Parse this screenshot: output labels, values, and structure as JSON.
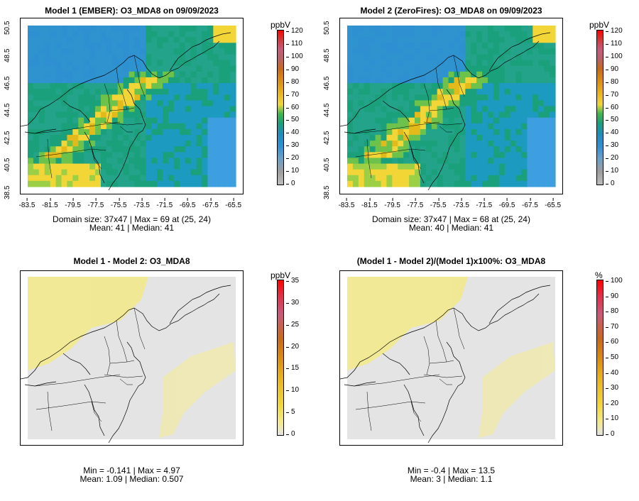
{
  "panels": [
    {
      "title": "Model 1 (EMBER): O3_MDA8 on 09/09/2023",
      "stat1": "Domain size: 37x47 | Max = 69 at (25, 24)",
      "stat2": "Mean: 41 |  Median: 41",
      "unit": "ppbV",
      "ticks": [
        "0",
        "10",
        "20",
        "30",
        "40",
        "50",
        "60",
        "70",
        "80",
        "90",
        "100",
        "110",
        "120"
      ],
      "type": "absolute",
      "colors": {
        "low": "#2e8fd1",
        "mid": "#1aa07a",
        "high": "#f2d637",
        "peak": "#e3ba1b",
        "ocean": "#1d9ac0"
      }
    },
    {
      "title": "Model 2 (ZeroFires): O3_MDA8 on 09/09/2023",
      "stat1": "Domain size: 37x47 | Max = 68 at (25, 24)",
      "stat2": "Mean: 40 |  Median: 41",
      "unit": "ppbV",
      "ticks": [
        "0",
        "10",
        "20",
        "30",
        "40",
        "50",
        "60",
        "70",
        "80",
        "90",
        "100",
        "110",
        "120"
      ],
      "type": "absolute",
      "colors": {
        "low": "#2e8fd1",
        "mid": "#1aa07a",
        "high": "#f2d637",
        "peak": "#e3ba1b",
        "ocean": "#1d9ac0"
      }
    },
    {
      "title": "Model 1 - Model 2: O3_MDA8",
      "stat1": "Min = -0.141 | Max = 4.97",
      "stat2": "Mean: 1.09 |  Median: 0.507",
      "unit": "ppbV",
      "ticks": [
        "0",
        "5",
        "10",
        "15",
        "20",
        "25",
        "30",
        "35"
      ],
      "type": "difference",
      "colors": {
        "bg": "#e4e4e4",
        "yellow": "#f2e98c"
      }
    },
    {
      "title": "(Model 1 - Model 2)/(Model 1)x100%: O3_MDA8",
      "stat1": "Min = -0.4 | Max = 13.5",
      "stat2": "Mean: 3 |  Median: 1.1",
      "unit": "%",
      "ticks": [
        "0",
        "10",
        "20",
        "30",
        "40",
        "50",
        "60",
        "70",
        "80",
        "90",
        "100"
      ],
      "type": "difference",
      "colors": {
        "bg": "#e4e4e4",
        "yellow": "#f2e98c"
      }
    }
  ],
  "axes": {
    "xticks": [
      "-83.5",
      "-81.5",
      "-79.5",
      "-77.5",
      "-75.5",
      "-73.5",
      "-71.5",
      "-69.5",
      "-67.5",
      "-65.5"
    ],
    "yticks": [
      "38.5",
      "40.5",
      "42.5",
      "44.5",
      "46.5",
      "48.5",
      "50.5"
    ]
  }
}
